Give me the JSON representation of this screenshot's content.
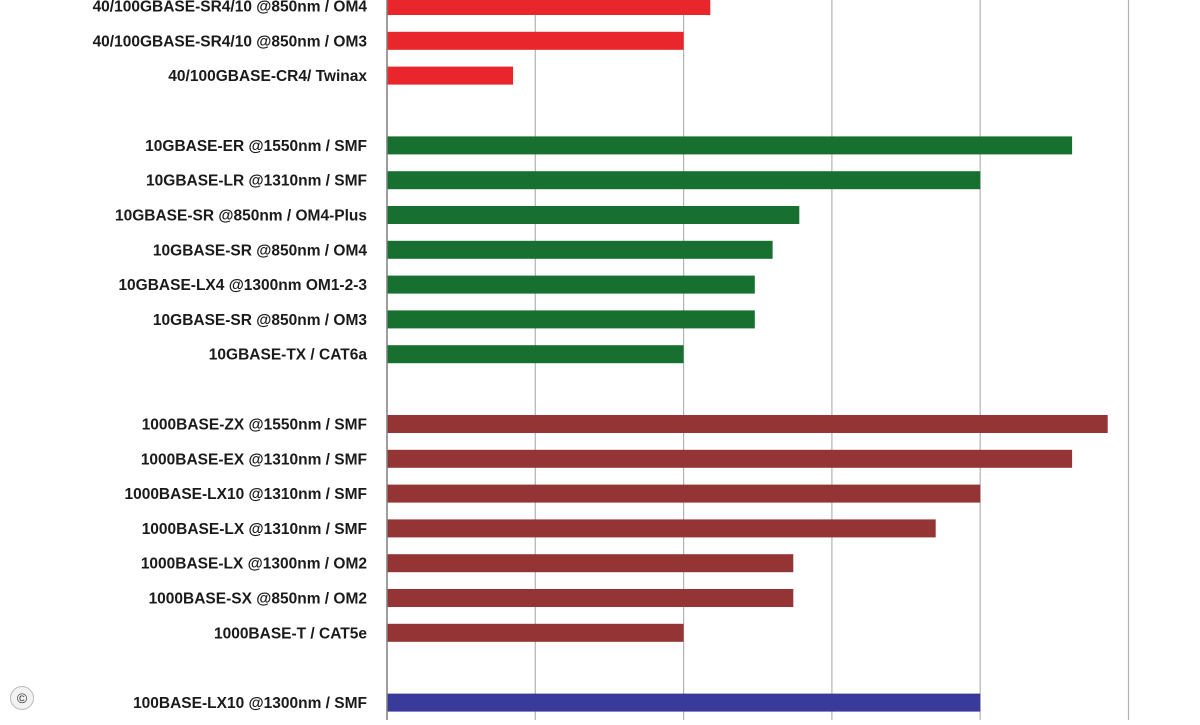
{
  "chart_data": {
    "type": "bar",
    "orientation": "horizontal",
    "title": "",
    "xlabel": "",
    "ylabel": "",
    "grid": true,
    "xlim": [
      0,
      10
    ],
    "categories": [
      "40/100GBASE-SR4/10 @850nm / OM4",
      "40/100GBASE-SR4/10 @850nm / OM3",
      "40/100GBASE-CR4/ Twinax",
      "10GBASE-ER @1550nm / SMF",
      "10GBASE-LR @1310nm / SMF",
      "10GBASE-SR @850nm / OM4-Plus",
      "10GBASE-SR @850nm / OM4",
      "10GBASE-LX4 @1300nm OM1-2-3",
      "10GBASE-SR @850nm / OM3",
      "10GBASE-TX / CAT6a",
      "1000BASE-ZX @1550nm / SMF",
      "1000BASE-EX @1310nm / SMF",
      "1000BASE-LX10 @1310nm / SMF",
      "1000BASE-LX @1310nm / SMF",
      "1000BASE-LX @1300nm / OM2",
      "1000BASE-SX @850nm / OM2",
      "1000BASE-T / CAT5e",
      "100BASE-LX10 @1300nm / SMF"
    ],
    "values": [
      2.18,
      2.0,
      0.85,
      4.62,
      4.0,
      2.78,
      2.6,
      2.48,
      2.48,
      2.0,
      4.86,
      4.62,
      4.0,
      3.7,
      2.74,
      2.74,
      2.0,
      4.0
    ],
    "groups": [
      0,
      0,
      0,
      1,
      1,
      1,
      1,
      1,
      1,
      1,
      2,
      2,
      2,
      2,
      2,
      2,
      2,
      3
    ],
    "group_colors": [
      "#e8262c",
      "#17702f",
      "#953435",
      "#3a3a9a"
    ]
  },
  "watermark": {
    "symbol": "©"
  }
}
